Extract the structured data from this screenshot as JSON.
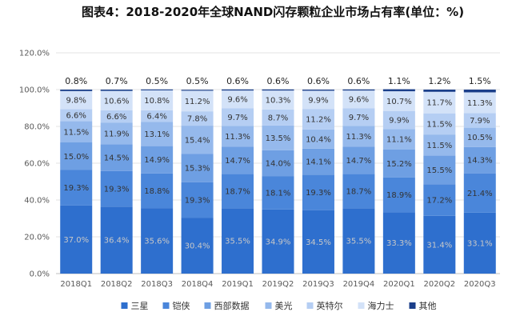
{
  "chart_data": {
    "type": "bar",
    "stacked": true,
    "title": "图表4：2018-2020年全球NAND闪存颗粒企业市场占有率(单位：%)",
    "categories": [
      "2018Q1",
      "2018Q2",
      "2018Q3",
      "2018Q4",
      "2019Q1",
      "2019Q2",
      "2019Q3",
      "2019Q4",
      "2020Q1",
      "2020Q2",
      "2020Q3"
    ],
    "y_ticks": [
      "0.0%",
      "20.0%",
      "40.0%",
      "60.0%",
      "80.0%",
      "100.0%",
      "120.0%"
    ],
    "ylim": [
      0,
      120
    ],
    "grid": true,
    "legend_position": "bottom",
    "series": [
      {
        "name": "三星",
        "color": "#2e6fce",
        "label_color": "#c8c8c8",
        "values": [
          37.0,
          36.4,
          35.6,
          30.4,
          35.5,
          34.9,
          34.5,
          35.5,
          33.3,
          31.4,
          33.1
        ]
      },
      {
        "name": "铠侠",
        "color": "#4a86da",
        "label_color": "#333333",
        "values": [
          19.3,
          19.3,
          18.8,
          19.3,
          18.7,
          18.1,
          19.3,
          18.7,
          18.9,
          17.2,
          21.4
        ]
      },
      {
        "name": "西部数据",
        "color": "#6e9fe3",
        "label_color": "#333333",
        "values": [
          15.0,
          14.5,
          14.9,
          15.3,
          14.7,
          14.0,
          14.1,
          14.7,
          15.2,
          15.5,
          14.3
        ]
      },
      {
        "name": "美光",
        "color": "#95b9ec",
        "label_color": "#333333",
        "values": [
          11.5,
          11.9,
          13.1,
          15.4,
          11.3,
          13.5,
          10.4,
          11.3,
          11.1,
          11.5,
          10.5
        ]
      },
      {
        "name": "英特尔",
        "color": "#b5cef3",
        "label_color": "#333333",
        "values": [
          6.6,
          6.6,
          6.4,
          7.8,
          9.7,
          8.7,
          11.2,
          9.7,
          9.9,
          11.5,
          7.9
        ]
      },
      {
        "name": "海力士",
        "color": "#d3e2f8",
        "label_color": "#333333",
        "values": [
          9.8,
          10.6,
          10.8,
          11.2,
          9.6,
          10.3,
          9.9,
          9.6,
          10.7,
          11.7,
          11.3
        ]
      },
      {
        "name": "其他",
        "color": "#1b3f8a",
        "label_color": "#222222",
        "values": [
          0.8,
          0.7,
          0.5,
          0.5,
          0.6,
          0.6,
          0.6,
          0.6,
          1.1,
          1.2,
          1.5
        ]
      }
    ]
  },
  "value_labels": {
    "三星": [
      "37.0%",
      "36.4%",
      "35.6%",
      "30.4%",
      "35.5%",
      "34.9%",
      "34.5%",
      "35.5%",
      "33.3%",
      "31.4%",
      "33.1%"
    ],
    "铠侠": [
      "19.3%",
      "19.3%",
      "18.8%",
      "19.3%",
      "18.7%",
      "18.1%",
      "19.3%",
      "18.7%",
      "18.9%",
      "17.2%",
      "21.4%"
    ],
    "西部数据": [
      "15.0%",
      "14.5%",
      "14.9%",
      "15.3%",
      "14.7%",
      "14.0%",
      "14.1%",
      "14.7%",
      "15.2%",
      "15.5%",
      "14.3%"
    ],
    "美光": [
      "11.5%",
      "11.9%",
      "13.1%",
      "15.4%",
      "11.3%",
      "13.5%",
      "10.4%",
      "11.3%",
      "11.1%",
      "11.5%",
      "10.5%"
    ],
    "英特尔": [
      "6.6%",
      "6.6%",
      "6.4%",
      "7.8%",
      "9.7%",
      "8.7%",
      "11.2%",
      "9.7%",
      "9.9%",
      "11.5%",
      "7.9%"
    ],
    "海力士": [
      "9.8%",
      "10.6%",
      "10.8%",
      "11.2%",
      "9.6%",
      "10.3%",
      "9.9%",
      "9.6%",
      "10.7%",
      "11.7%",
      "11.3%"
    ],
    "其他": [
      "0.8%",
      "0.7%",
      "0.5%",
      "0.5%",
      "0.6%",
      "0.6%",
      "0.6%",
      "0.6%",
      "1.1%",
      "1.2%",
      "1.5%"
    ]
  }
}
